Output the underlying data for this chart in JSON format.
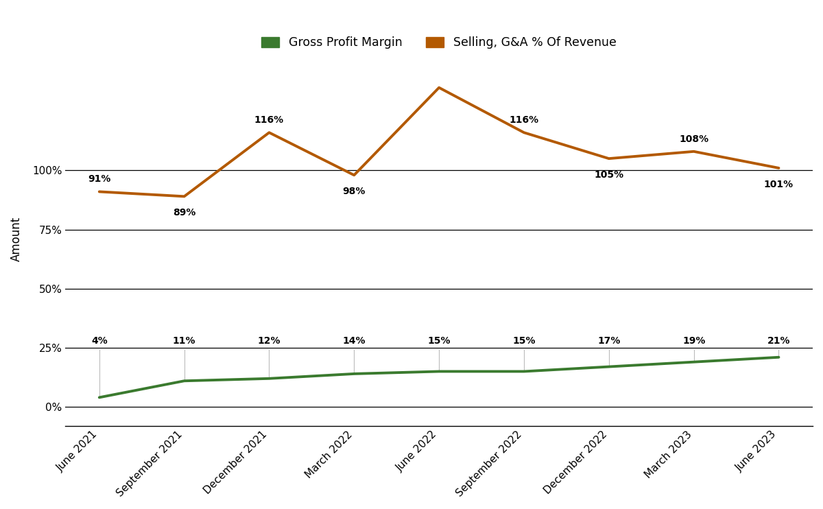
{
  "categories": [
    "June 2021",
    "September 2021",
    "December 2021",
    "March 2022",
    "June 2022",
    "September 2022",
    "December 2022",
    "March 2023",
    "June 2023"
  ],
  "gross_profit_margin": [
    4,
    11,
    12,
    14,
    15,
    15,
    17,
    19,
    21
  ],
  "selling_ga": [
    91,
    89,
    116,
    98,
    135,
    116,
    105,
    108,
    101
  ],
  "gpm_labels": [
    "4%",
    "11%",
    "12%",
    "14%",
    "15%",
    "15%",
    "17%",
    "19%",
    "21%"
  ],
  "sga_labels_all": [
    "91%",
    "89%",
    "116%",
    "98%",
    null,
    "116%",
    "105%",
    "108%",
    "101%"
  ],
  "sga_offsets_y": [
    8,
    -12,
    8,
    -12,
    null,
    8,
    -12,
    8,
    -12
  ],
  "gpm_color": "#3a7a2e",
  "sga_color": "#b35900",
  "line_width": 2.8,
  "ylabel": "Amount",
  "yticks": [
    0,
    25,
    50,
    75,
    100
  ],
  "ytick_labels": [
    "0%",
    "25%",
    "50%",
    "75%",
    "100%"
  ],
  "background_color": "#ffffff",
  "legend_gpm": "Gross Profit Margin",
  "legend_sga": "Selling, G&A % Of Revenue",
  "connector_color": "#bbbbbb",
  "annotation_fontsize": 10,
  "tick_fontsize": 11,
  "ylabel_fontsize": 12
}
